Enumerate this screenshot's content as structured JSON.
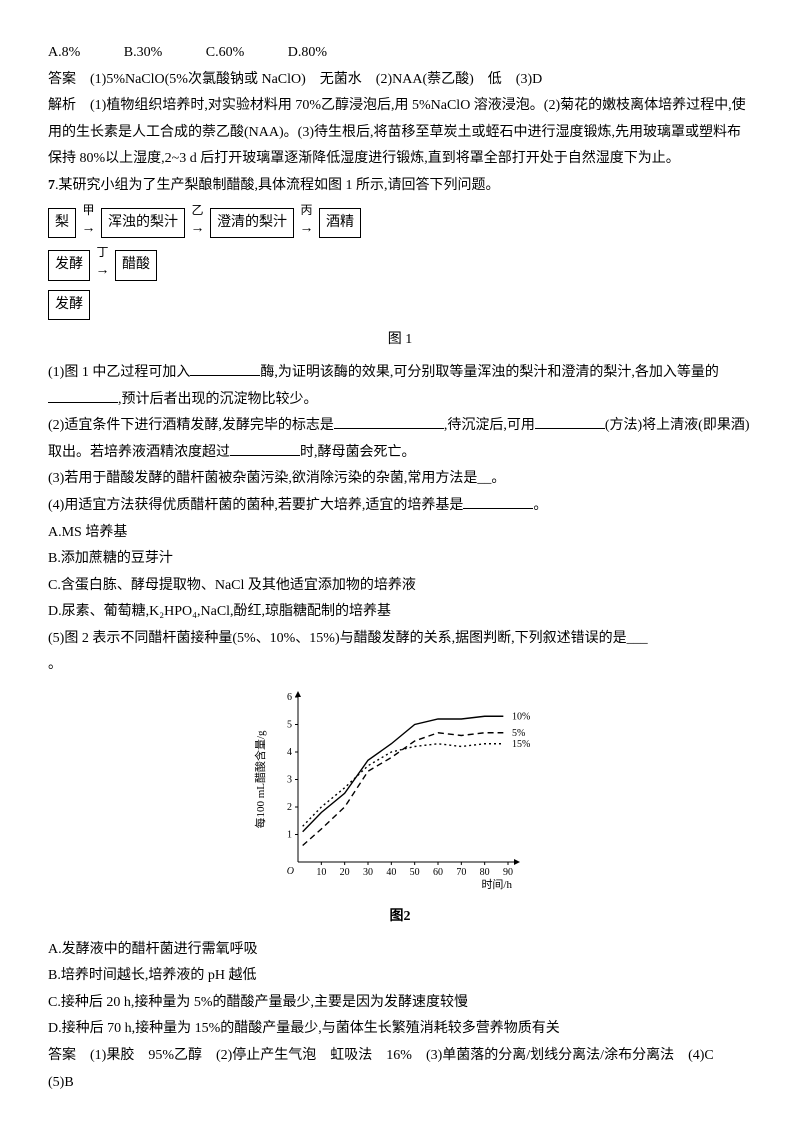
{
  "q6": {
    "options": {
      "a": "A.8%",
      "b": "B.30%",
      "c": "C.60%",
      "d": "D.80%"
    },
    "ans_label": "答案",
    "ans_text": "(1)5%NaClO(5%次氯酸钠或 NaClO)　无菌水　(2)NAA(萘乙酸)　低　(3)D",
    "exp_label": "解析",
    "exp_text": "(1)植物组织培养时,对实验材料用 70%乙醇浸泡后,用 5%NaClO 溶液浸泡。(2)菊花的嫩枝离体培养过程中,使用的生长素是人工合成的萘乙酸(NAA)。(3)待生根后,将苗移至草炭土或蛭石中进行湿度锻炼,先用玻璃罩或塑料布保持 80%以上湿度,2~3 d 后打开玻璃罩逐渐降低湿度进行锻炼,直到将罩全部打开处于自然湿度下为止。"
  },
  "q7": {
    "num": "7",
    "stem": ".某研究小组为了生产梨酿制醋酸,具体流程如图 1 所示,请回答下列问题。",
    "flow": {
      "n1": "梨",
      "s1": "甲",
      "n2": "浑浊的梨汁",
      "s2": "乙",
      "n3": "澄清的梨汁",
      "s3": "丙",
      "n4": "酒精",
      "row2a": "发酵",
      "s4": "丁",
      "row2b": "醋酸",
      "row3": "发酵"
    },
    "fig1": "图 1",
    "p1": "(1)图 1 中乙过程可加入",
    "p1b": "酶,为证明该酶的效果,可分别取等量浑浊的梨汁和澄清的梨汁,各加入等量的",
    "p1c": ",预计后者出现的沉淀物比较少。",
    "p2": "(2)适宜条件下进行酒精发酵,发酵完毕的标志是",
    "p2b": ",待沉淀后,可用",
    "p2c": "(方法)将上清液(即果酒)取出。若培养液酒精浓度超过",
    "p2d": "时,酵母菌会死亡。",
    "p3": "(3)若用于醋酸发酵的醋杆菌被杂菌污染,欲消除污染的杂菌,常用方法是__。",
    "p4": "(4)用适宜方法获得优质醋杆菌的菌种,若要扩大培养,适宜的培养基是",
    "p4b": "。",
    "optA": "A.MS 培养基",
    "optB": "B.添加蔗糖的豆芽汁",
    "optC": "C.含蛋白胨、酵母提取物、NaCl 及其他适宜添加物的培养液",
    "optD": "D.尿素、葡萄糖,K₂HPO₄,NaCl,酚红,琼脂糖配制的培养基",
    "p5": "(5)图 2 表示不同醋杆菌接种量(5%、10%、15%)与醋酸发酵的关系,据图判断,下列叙述错误的是___",
    "p5b": "。",
    "chart": {
      "ylabel": "每100 mL醋酸含量/g",
      "xlabel": "时间/h",
      "xticks": [
        0,
        10,
        20,
        30,
        40,
        50,
        60,
        70,
        80,
        90
      ],
      "yticks": [
        0,
        1,
        2,
        3,
        4,
        5,
        6
      ],
      "xlim": [
        0,
        90
      ],
      "ylim": [
        0,
        6
      ],
      "series": [
        {
          "name": "10%",
          "dash": "0",
          "color": "#000000",
          "points": [
            [
              2,
              1.1
            ],
            [
              10,
              1.8
            ],
            [
              20,
              2.5
            ],
            [
              30,
              3.7
            ],
            [
              40,
              4.3
            ],
            [
              50,
              5.0
            ],
            [
              60,
              5.2
            ],
            [
              70,
              5.2
            ],
            [
              80,
              5.3
            ],
            [
              88,
              5.3
            ]
          ]
        },
        {
          "name": "5%",
          "dash": "6 4",
          "color": "#000000",
          "points": [
            [
              2,
              0.6
            ],
            [
              10,
              1.2
            ],
            [
              20,
              2.0
            ],
            [
              30,
              3.3
            ],
            [
              40,
              3.8
            ],
            [
              50,
              4.4
            ],
            [
              60,
              4.7
            ],
            [
              70,
              4.6
            ],
            [
              80,
              4.7
            ],
            [
              88,
              4.7
            ]
          ]
        },
        {
          "name": "15%",
          "dash": "2 3",
          "color": "#000000",
          "points": [
            [
              2,
              1.3
            ],
            [
              10,
              2.0
            ],
            [
              20,
              2.7
            ],
            [
              30,
              3.5
            ],
            [
              40,
              4.0
            ],
            [
              50,
              4.2
            ],
            [
              60,
              4.3
            ],
            [
              70,
              4.2
            ],
            [
              80,
              4.3
            ],
            [
              88,
              4.3
            ]
          ]
        }
      ],
      "legend": [
        {
          "t": "10%",
          "y": 5.3
        },
        {
          "t": "5%",
          "y": 4.7
        },
        {
          "t": "15%",
          "y": 4.3
        }
      ],
      "label_fs": 11,
      "tick_fs": 10,
      "axis_color": "#000000"
    },
    "fig2": "图2",
    "o5a": "A.发酵液中的醋杆菌进行需氧呼吸",
    "o5b": "B.培养时间越长,培养液的 pH 越低",
    "o5c": "C.接种后 20 h,接种量为 5%的醋酸产量最少,主要是因为发酵速度较慢",
    "o5d": "D.接种后 70 h,接种量为 15%的醋酸产量最少,与菌体生长繁殖消耗较多营养物质有关",
    "ans_label": "答案",
    "ans_text": "(1)果胶　95%乙醇　(2)停止产生气泡　虹吸法　16%　(3)单菌落的分离/划线分离法/涂布分离法　(4)C　(5)B"
  }
}
